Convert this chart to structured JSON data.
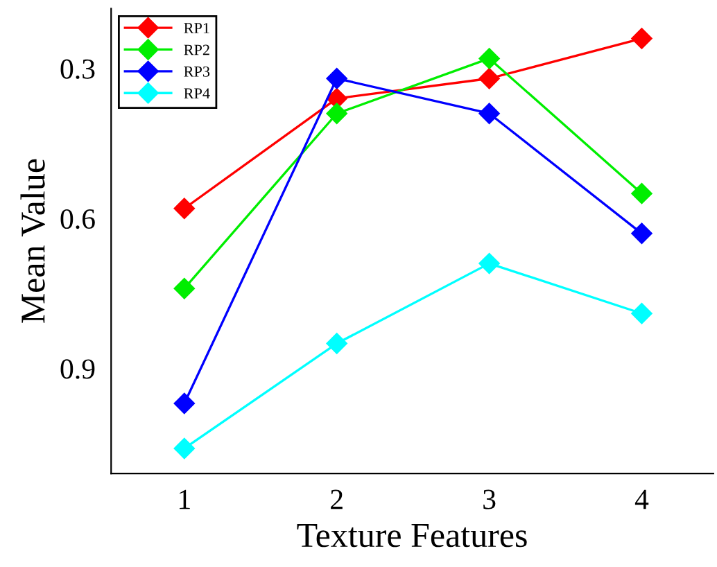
{
  "chart_data": {
    "type": "line",
    "xlabel": "Texture Features",
    "ylabel": "Mean Value",
    "x": [
      1,
      2,
      3,
      4
    ],
    "xlim": [
      0.52,
      4.47
    ],
    "xticks": [
      1,
      2,
      3,
      4
    ],
    "ylim": [
      1.11,
      0.18
    ],
    "yticks": [
      0.3,
      0.6,
      0.9
    ],
    "marker": "diamond",
    "line_style": "solid",
    "legend": "top left",
    "grid": false,
    "series": [
      {
        "name": "RP1",
        "color": "#ff0000",
        "values": [
          0.58,
          0.36,
          0.32,
          0.24
        ]
      },
      {
        "name": "RP2",
        "color": "#00ee00",
        "values": [
          0.74,
          0.39,
          0.28,
          0.55
        ]
      },
      {
        "name": "RP3",
        "color": "#0000ff",
        "values": [
          0.97,
          0.32,
          0.39,
          0.63
        ]
      },
      {
        "name": "RP4",
        "color": "#00ffff",
        "values": [
          1.06,
          0.85,
          0.69,
          0.79
        ]
      }
    ]
  }
}
